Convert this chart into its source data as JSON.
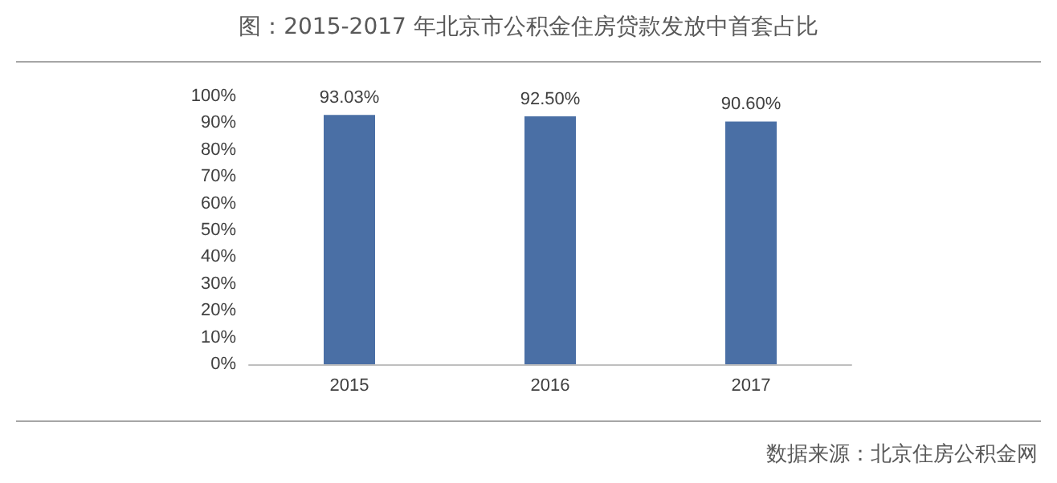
{
  "chart_data": {
    "type": "bar",
    "title": "图：2015-2017 年北京市公积金住房贷款发放中首套占比",
    "categories": [
      "2015",
      "2016",
      "2017"
    ],
    "values": [
      93.03,
      92.5,
      90.6
    ],
    "color": "#4a6fa5",
    "value_labels": [
      "93.03%",
      "92.50%",
      "90.60%"
    ],
    "ylim": [
      0,
      100
    ],
    "yticks": [
      {
        "value": 0,
        "label": "0%"
      },
      {
        "value": 10,
        "label": "10%"
      },
      {
        "value": 20,
        "label": "20%"
      },
      {
        "value": 30,
        "label": "30%"
      },
      {
        "value": 40,
        "label": "40%"
      },
      {
        "value": 50,
        "label": "50%"
      },
      {
        "value": 60,
        "label": "60%"
      },
      {
        "value": 70,
        "label": "70%"
      },
      {
        "value": 80,
        "label": "80%"
      },
      {
        "value": 90,
        "label": "90%"
      },
      {
        "value": 100,
        "label": "100%"
      }
    ],
    "grid": false,
    "annotations": [
      "数据来源：北京住房公积金网"
    ]
  }
}
